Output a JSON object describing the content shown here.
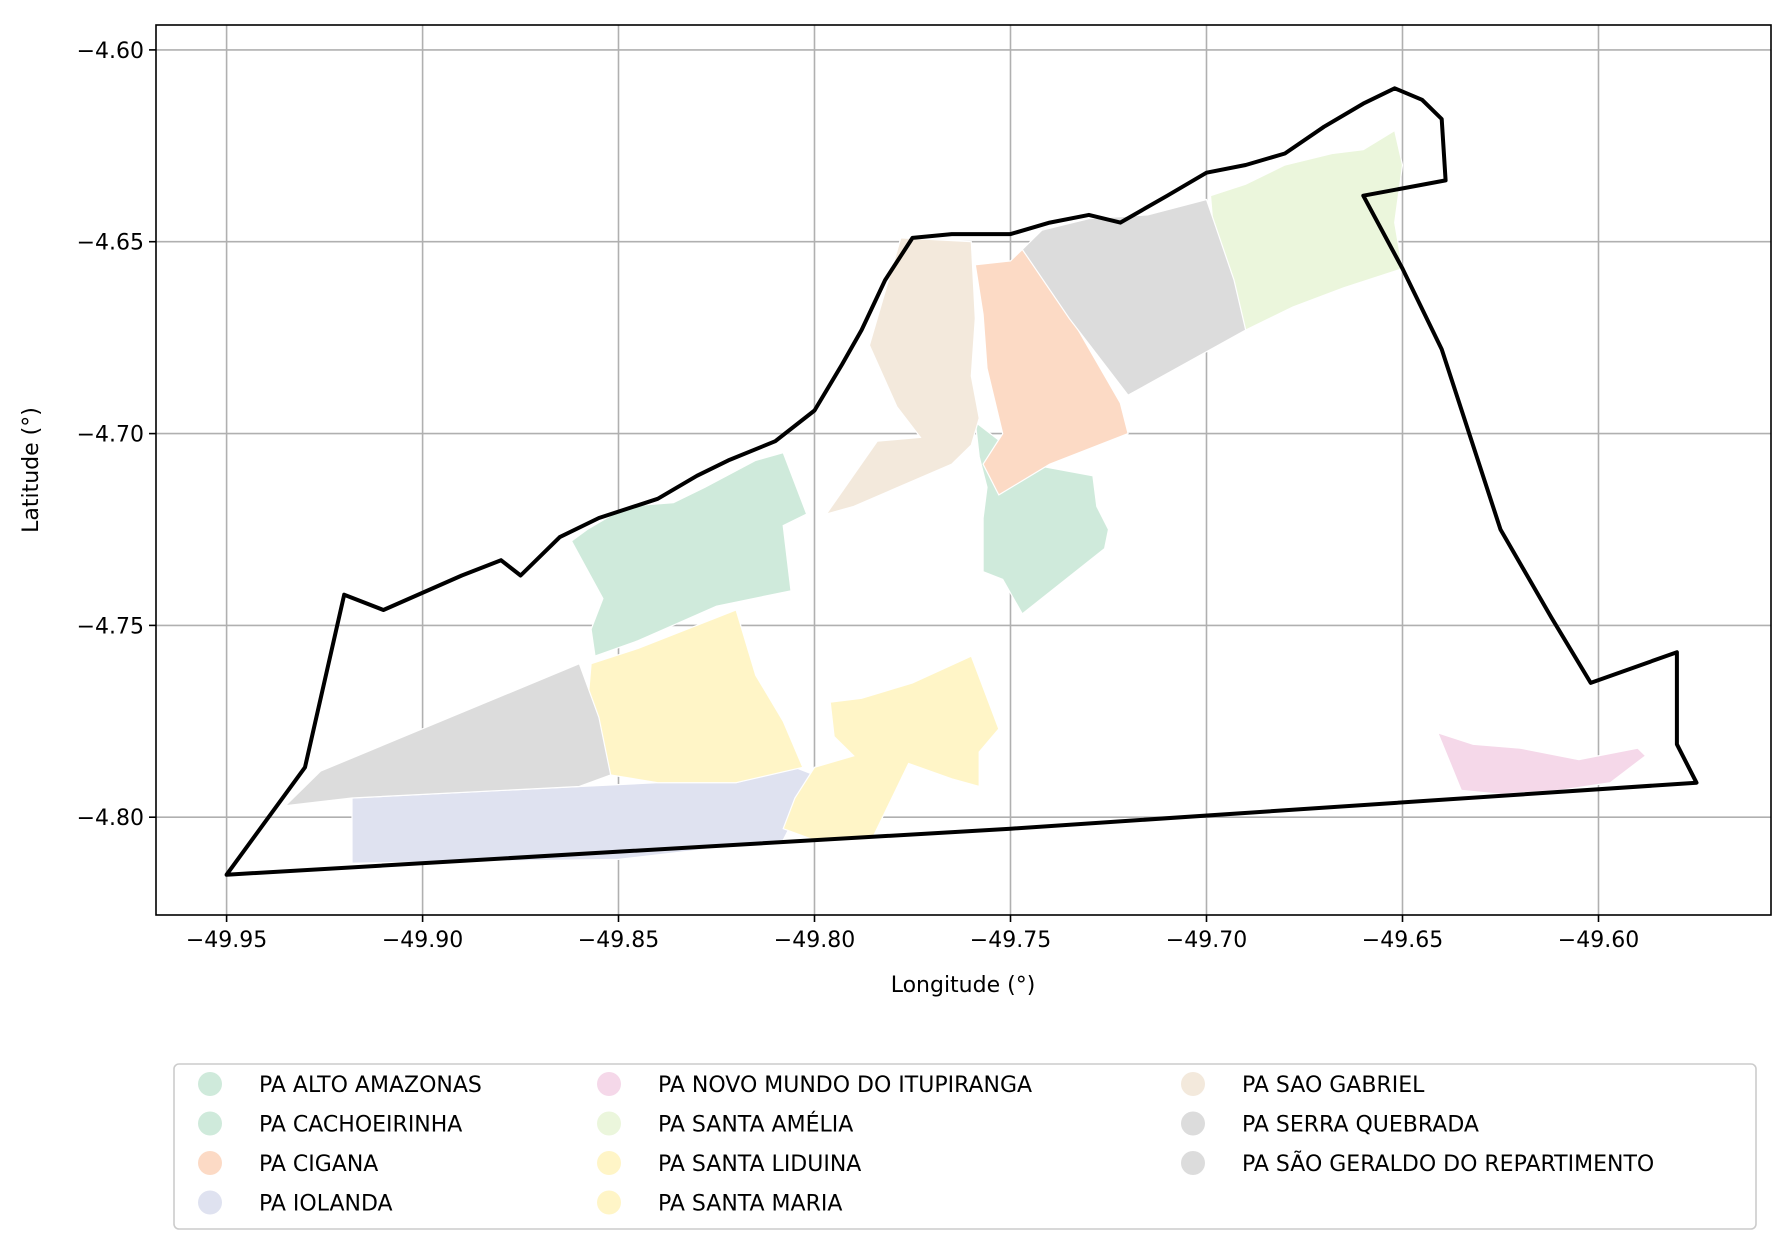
{
  "map": {
    "xlabel": "Longitude (°)",
    "ylabel": "Latitude (°)",
    "xlim": [
      -49.968,
      -49.556
    ],
    "ylim": [
      -4.8255,
      -4.5935
    ],
    "grid": true,
    "x_ticks": [
      -49.95,
      -49.9,
      -49.85,
      -49.8,
      -49.75,
      -49.7,
      -49.65,
      -49.6
    ],
    "x_tick_labels": [
      "−49.95",
      "−49.90",
      "−49.85",
      "−49.80",
      "−49.75",
      "−49.70",
      "−49.65",
      "−49.60"
    ],
    "y_ticks": [
      -4.6,
      -4.65,
      -4.7,
      -4.75,
      -4.8
    ],
    "y_tick_labels": [
      "−4.60",
      "−4.65",
      "−4.70",
      "−4.75",
      "−4.80"
    ],
    "boundary_color": "#000000",
    "legend_placement": "below-center",
    "legend_columns": 3
  },
  "settlements": [
    {
      "name": "PA ALTO AMAZONAS",
      "color": "#cfeadb",
      "polygon": [
        [
          -49.759,
          -4.697
        ],
        [
          -49.745,
          -4.708
        ],
        [
          -49.729,
          -4.711
        ],
        [
          -49.728,
          -4.719
        ],
        [
          -49.725,
          -4.725
        ],
        [
          -49.726,
          -4.73
        ],
        [
          -49.747,
          -4.747
        ],
        [
          -49.752,
          -4.738
        ],
        [
          -49.757,
          -4.736
        ],
        [
          -49.757,
          -4.728
        ],
        [
          -49.757,
          -4.722
        ],
        [
          -49.756,
          -4.714
        ],
        [
          -49.758,
          -4.706
        ]
      ]
    },
    {
      "name": "PA CACHOEIRINHA",
      "color": "#cfeadb",
      "polygon": [
        [
          -49.862,
          -4.728
        ],
        [
          -49.858,
          -4.725
        ],
        [
          -49.848,
          -4.719
        ],
        [
          -49.836,
          -4.718
        ],
        [
          -49.828,
          -4.714
        ],
        [
          -49.815,
          -4.707
        ],
        [
          -49.808,
          -4.705
        ],
        [
          -49.802,
          -4.721
        ],
        [
          -49.808,
          -4.724
        ],
        [
          -49.806,
          -4.741
        ],
        [
          -49.825,
          -4.745
        ],
        [
          -49.845,
          -4.754
        ],
        [
          -49.856,
          -4.758
        ],
        [
          -49.857,
          -4.751
        ],
        [
          -49.854,
          -4.743
        ]
      ]
    },
    {
      "name": "PA CIGANA",
      "color": "#fcdac5",
      "polygon": [
        [
          -49.759,
          -4.656
        ],
        [
          -49.75,
          -4.655
        ],
        [
          -49.747,
          -4.652
        ],
        [
          -49.735,
          -4.669
        ],
        [
          -49.722,
          -4.692
        ],
        [
          -49.72,
          -4.7
        ],
        [
          -49.74,
          -4.708
        ],
        [
          -49.753,
          -4.716
        ],
        [
          -49.757,
          -4.708
        ],
        [
          -49.752,
          -4.7
        ],
        [
          -49.756,
          -4.683
        ],
        [
          -49.757,
          -4.669
        ]
      ]
    },
    {
      "name": "PA IOLANDA",
      "color": "#dfe2f0",
      "polygon": [
        [
          -49.918,
          -4.795
        ],
        [
          -49.86,
          -4.792
        ],
        [
          -49.84,
          -4.791
        ],
        [
          -49.82,
          -4.791
        ],
        [
          -49.805,
          -4.787
        ],
        [
          -49.8,
          -4.789
        ],
        [
          -49.8,
          -4.796
        ],
        [
          -49.805,
          -4.8
        ],
        [
          -49.808,
          -4.806
        ],
        [
          -49.85,
          -4.811
        ],
        [
          -49.918,
          -4.812
        ]
      ]
    },
    {
      "name": "PA NOVO MUNDO DO ITUPIRANGA",
      "color": "#f5d8e9",
      "polygon": [
        [
          -49.641,
          -4.778
        ],
        [
          -49.632,
          -4.781
        ],
        [
          -49.62,
          -4.782
        ],
        [
          -49.605,
          -4.785
        ],
        [
          -49.59,
          -4.782
        ],
        [
          -49.588,
          -4.784
        ],
        [
          -49.597,
          -4.791
        ],
        [
          -49.61,
          -4.793
        ],
        [
          -49.625,
          -4.794
        ],
        [
          -49.635,
          -4.793
        ]
      ]
    },
    {
      "name": "PA SANTA AMÉLIA",
      "color": "#ebf6dc",
      "polygon": [
        [
          -49.699,
          -4.638
        ],
        [
          -49.69,
          -4.635
        ],
        [
          -49.68,
          -4.63
        ],
        [
          -49.668,
          -4.627
        ],
        [
          -49.66,
          -4.626
        ],
        [
          -49.652,
          -4.621
        ],
        [
          -49.65,
          -4.63
        ],
        [
          -49.652,
          -4.645
        ],
        [
          -49.65,
          -4.657
        ],
        [
          -49.665,
          -4.662
        ],
        [
          -49.678,
          -4.667
        ],
        [
          -49.69,
          -4.673
        ],
        [
          -49.693,
          -4.663
        ],
        [
          -49.698,
          -4.65
        ]
      ]
    },
    {
      "name": "PA SANTA LIDUINA",
      "color": "#fff5c7",
      "polygon": [
        [
          -49.796,
          -4.77
        ],
        [
          -49.788,
          -4.769
        ],
        [
          -49.775,
          -4.765
        ],
        [
          -49.76,
          -4.758
        ],
        [
          -49.753,
          -4.777
        ],
        [
          -49.758,
          -4.783
        ],
        [
          -49.758,
          -4.792
        ],
        [
          -49.765,
          -4.79
        ],
        [
          -49.776,
          -4.786
        ],
        [
          -49.785,
          -4.805
        ],
        [
          -49.8,
          -4.806
        ],
        [
          -49.808,
          -4.803
        ],
        [
          -49.805,
          -4.795
        ],
        [
          -49.8,
          -4.787
        ],
        [
          -49.79,
          -4.784
        ],
        [
          -49.795,
          -4.779
        ]
      ]
    },
    {
      "name": "PA SANTA MARIA",
      "color": "#fff5c7",
      "polygon": [
        [
          -49.857,
          -4.76
        ],
        [
          -49.845,
          -4.756
        ],
        [
          -49.82,
          -4.746
        ],
        [
          -49.815,
          -4.763
        ],
        [
          -49.808,
          -4.775
        ],
        [
          -49.803,
          -4.787
        ],
        [
          -49.82,
          -4.791
        ],
        [
          -49.84,
          -4.791
        ],
        [
          -49.852,
          -4.789
        ],
        [
          -49.855,
          -4.778
        ],
        [
          -49.858,
          -4.772
        ]
      ]
    },
    {
      "name": "PA SAO GABRIEL",
      "color": "#f3e9dc",
      "polygon": [
        [
          -49.778,
          -4.649
        ],
        [
          -49.76,
          -4.65
        ],
        [
          -49.759,
          -4.67
        ],
        [
          -49.76,
          -4.685
        ],
        [
          -49.758,
          -4.696
        ],
        [
          -49.76,
          -4.703
        ],
        [
          -49.765,
          -4.708
        ],
        [
          -49.79,
          -4.719
        ],
        [
          -49.797,
          -4.721
        ],
        [
          -49.784,
          -4.702
        ],
        [
          -49.773,
          -4.701
        ],
        [
          -49.779,
          -4.693
        ],
        [
          -49.786,
          -4.677
        ]
      ]
    },
    {
      "name": "PA SERRA QUEBRADA",
      "color": "#dcdcdc",
      "polygon": [
        [
          -49.935,
          -4.797
        ],
        [
          -49.926,
          -4.788
        ],
        [
          -49.86,
          -4.76
        ],
        [
          -49.855,
          -4.774
        ],
        [
          -49.852,
          -4.789
        ],
        [
          -49.86,
          -4.792
        ],
        [
          -49.918,
          -4.795
        ]
      ]
    },
    {
      "name": "PA SÃO GERALDO DO REPARTIMENTO",
      "color": "#dcdcdc",
      "polygon": [
        [
          -49.742,
          -4.647
        ],
        [
          -49.73,
          -4.644
        ],
        [
          -49.715,
          -4.643
        ],
        [
          -49.7,
          -4.639
        ],
        [
          -49.693,
          -4.66
        ],
        [
          -49.69,
          -4.673
        ],
        [
          -49.72,
          -4.69
        ],
        [
          -49.735,
          -4.67
        ],
        [
          -49.747,
          -4.652
        ]
      ]
    }
  ],
  "boundary": [
    [
      -49.95,
      -4.815
    ],
    [
      -49.93,
      -4.787
    ],
    [
      -49.92,
      -4.742
    ],
    [
      -49.91,
      -4.746
    ],
    [
      -49.89,
      -4.737
    ],
    [
      -49.88,
      -4.733
    ],
    [
      -49.875,
      -4.737
    ],
    [
      -49.865,
      -4.727
    ],
    [
      -49.855,
      -4.722
    ],
    [
      -49.84,
      -4.717
    ],
    [
      -49.83,
      -4.711
    ],
    [
      -49.822,
      -4.707
    ],
    [
      -49.81,
      -4.702
    ],
    [
      -49.8,
      -4.694
    ],
    [
      -49.793,
      -4.682
    ],
    [
      -49.788,
      -4.673
    ],
    [
      -49.782,
      -4.66
    ],
    [
      -49.775,
      -4.649
    ],
    [
      -49.765,
      -4.648
    ],
    [
      -49.75,
      -4.648
    ],
    [
      -49.74,
      -4.645
    ],
    [
      -49.73,
      -4.643
    ],
    [
      -49.722,
      -4.645
    ],
    [
      -49.71,
      -4.638
    ],
    [
      -49.7,
      -4.632
    ],
    [
      -49.69,
      -4.63
    ],
    [
      -49.68,
      -4.627
    ],
    [
      -49.67,
      -4.62
    ],
    [
      -49.66,
      -4.614
    ],
    [
      -49.652,
      -4.61
    ],
    [
      -49.645,
      -4.613
    ],
    [
      -49.64,
      -4.618
    ],
    [
      -49.639,
      -4.634
    ],
    [
      -49.66,
      -4.638
    ],
    [
      -49.65,
      -4.657
    ],
    [
      -49.64,
      -4.678
    ],
    [
      -49.625,
      -4.725
    ],
    [
      -49.612,
      -4.748
    ],
    [
      -49.602,
      -4.765
    ],
    [
      -49.58,
      -4.757
    ],
    [
      -49.58,
      -4.781
    ],
    [
      -49.575,
      -4.791
    ],
    [
      -49.75,
      -4.803
    ],
    [
      -49.95,
      -4.815
    ]
  ]
}
